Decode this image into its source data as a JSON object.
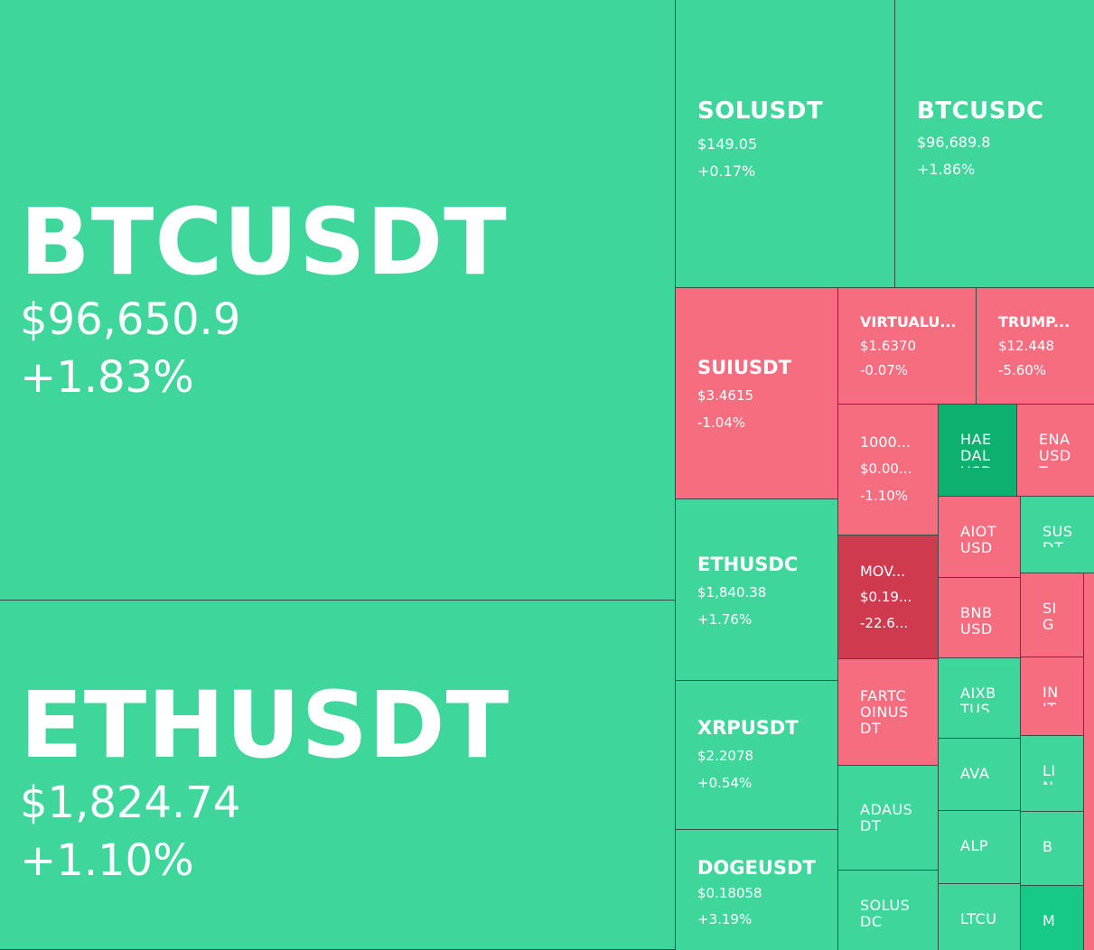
{
  "tiles": {
    "btcusdt": {
      "symbol": "BTCUSDT",
      "price": "$96,650.9",
      "change": "+1.83%"
    },
    "ethusdt": {
      "symbol": "ETHUSDT",
      "price": "$1,824.74",
      "change": "+1.10%"
    },
    "solusdt": {
      "symbol": "SOLUSDT",
      "price": "$149.05",
      "change": "+0.17%"
    },
    "btcusdc": {
      "symbol": "BTCUSDC",
      "price": "$96,689.8",
      "change": "+1.86%"
    },
    "suiusdt": {
      "symbol": "SUIUSDT",
      "price": "$3.4615",
      "change": "-1.04%"
    },
    "virtual": {
      "symbol": "VIRTUALU...",
      "price": "$1.6370",
      "change": "-0.07%"
    },
    "trump": {
      "symbol": "TRUMP...",
      "price": "$12.448",
      "change": "-5.60%"
    },
    "k1000": {
      "symbol": "1000...",
      "price": "$0.00...",
      "change": "-1.10%"
    },
    "haedal": {
      "symbol": "HAEDALUSD"
    },
    "ena": {
      "symbol": "ENAUSDT"
    },
    "ethusdc": {
      "symbol": "ETHUSDC",
      "price": "$1,840.38",
      "change": "+1.76%"
    },
    "mov": {
      "symbol": "MOV...",
      "price": "$0.19...",
      "change": "-22.6..."
    },
    "aiot": {
      "symbol": "AIOTUSD"
    },
    "sus": {
      "symbol": "SUSDT"
    },
    "bnb": {
      "symbol": "BNBUSD"
    },
    "sig": {
      "symbol": "SIG"
    },
    "xrpusdt": {
      "symbol": "XRPUSDT",
      "price": "$2.2078",
      "change": "+0.54%"
    },
    "fartcoin": {
      "symbol": "FARTCOINUSDT"
    },
    "aixbt": {
      "symbol": "AIXBTUS"
    },
    "in": {
      "symbol": "INIT"
    },
    "ava": {
      "symbol": "AVA"
    },
    "li": {
      "symbol": "LIN"
    },
    "adausdt": {
      "symbol": "ADAUSDT"
    },
    "alp": {
      "symbol": "ALP"
    },
    "b": {
      "symbol": "B_"
    },
    "dogeusdt": {
      "symbol": "DOGEUSDT",
      "price": "$0.18058",
      "change": "+3.19%"
    },
    "solusdc": {
      "symbol": "SOLUSDC"
    },
    "ltcu": {
      "symbol": "LTCU"
    },
    "m": {
      "symbol": "M"
    }
  },
  "colors": {
    "up": "#3fd69c",
    "up_strong": "#0eb070",
    "up_medium": "#16c987",
    "down": "#f56d7e",
    "down_strong": "#cf3a4e",
    "border": "#3a4b4f"
  }
}
